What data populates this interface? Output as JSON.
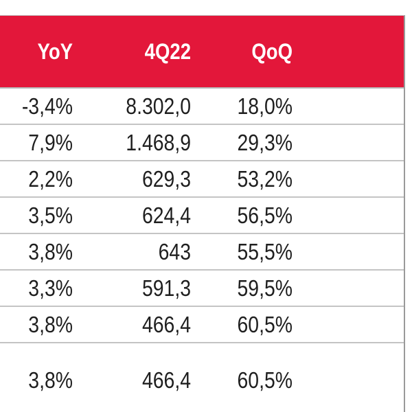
{
  "table": {
    "header_bg": "#e3173a",
    "columns": [
      "YoY",
      "4Q22",
      "QoQ"
    ],
    "rows": [
      [
        "-3,4%",
        "8.302,0",
        "18,0%"
      ],
      [
        "7,9%",
        "1.468,9",
        "29,3%"
      ],
      [
        "2,2%",
        "629,3",
        "53,2%"
      ],
      [
        "3,5%",
        "624,4",
        "56,5%"
      ],
      [
        "3,8%",
        "643",
        "55,5%"
      ],
      [
        "3,3%",
        "591,3",
        "59,5%"
      ],
      [
        "3,8%",
        "466,4",
        "60,5%"
      ],
      [
        "3,8%",
        "466,4",
        "60,5%"
      ]
    ]
  }
}
